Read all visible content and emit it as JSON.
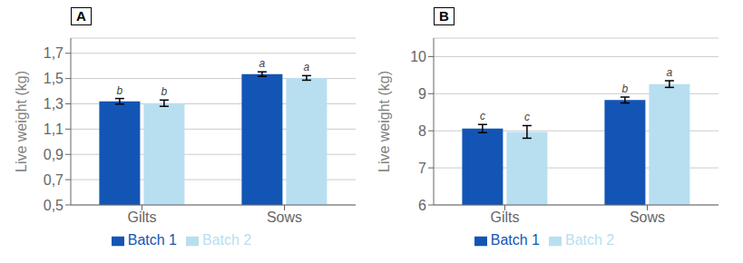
{
  "chart_data": [
    {
      "type": "bar",
      "title": "A",
      "y_label": "Live weight (kg)",
      "categories": [
        "Gilts",
        "Sows"
      ],
      "series": [
        {
          "name": "Batch 1",
          "color": "#1355b5",
          "values": [
            1.32,
            1.535
          ],
          "errors": [
            0.022,
            0.018
          ],
          "annotations": [
            "b",
            "a"
          ]
        },
        {
          "name": "Batch 2",
          "color": "#b8dff0",
          "values": [
            1.305,
            1.505
          ],
          "errors": [
            0.025,
            0.018
          ],
          "annotations": [
            "b",
            "a"
          ]
        }
      ],
      "ylim": [
        0.5,
        1.82
      ],
      "yticks": [
        {
          "value": 0.5,
          "label": "0,5"
        },
        {
          "value": 0.7,
          "label": "0,7"
        },
        {
          "value": 0.9,
          "label": "0,9"
        },
        {
          "value": 1.1,
          "label": "1,1"
        },
        {
          "value": 1.3,
          "label": "1,3"
        },
        {
          "value": 1.5,
          "label": "1,5"
        },
        {
          "value": 1.7,
          "label": "1,7"
        }
      ],
      "grid": true,
      "legend": "bottom"
    },
    {
      "type": "bar",
      "title": "B",
      "y_label": "Live weight (kg)",
      "categories": [
        "Gilts",
        "Sows"
      ],
      "series": [
        {
          "name": "Batch 1",
          "color": "#1355b5",
          "values": [
            8.06,
            8.83
          ],
          "errors": [
            0.11,
            0.08
          ],
          "annotations": [
            "c",
            "b"
          ]
        },
        {
          "name": "Batch 2",
          "color": "#b8dff0",
          "values": [
            7.97,
            9.26
          ],
          "errors": [
            0.17,
            0.09
          ],
          "annotations": [
            "c",
            "a"
          ]
        }
      ],
      "ylim": [
        6,
        10.5
      ],
      "yticks": [
        6,
        7,
        8,
        9,
        10
      ],
      "grid": true,
      "legend": "bottom"
    }
  ]
}
